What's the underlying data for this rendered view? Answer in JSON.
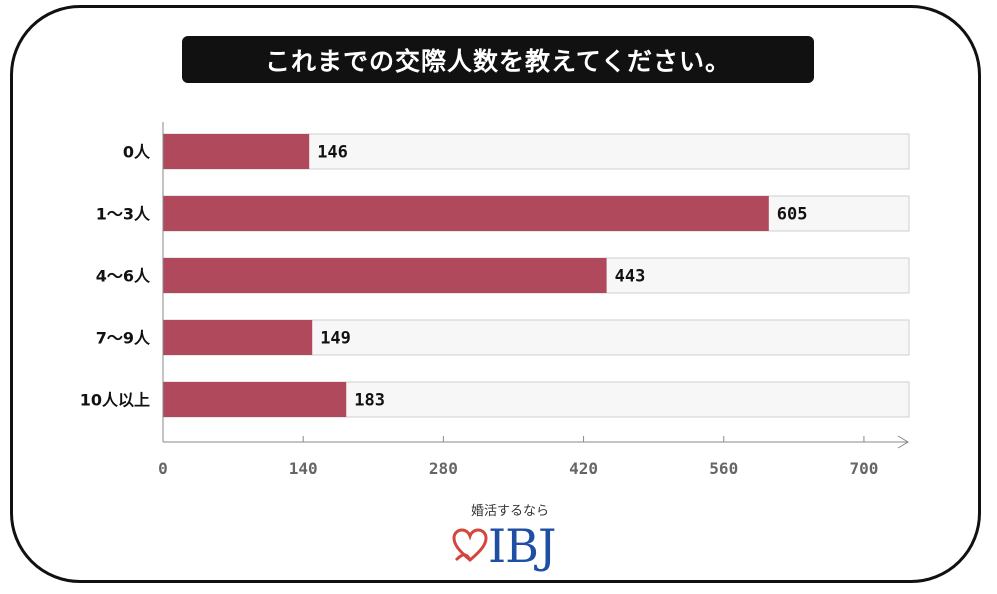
{
  "title": "これまでの交際人数を教えてください。",
  "chart_data": {
    "type": "bar",
    "orientation": "horizontal",
    "categories": [
      "0人",
      "1〜3人",
      "4〜6人",
      "7〜9人",
      "10人以上"
    ],
    "values": [
      146,
      605,
      443,
      149,
      183
    ],
    "xlim": [
      0,
      745
    ],
    "xticks": [
      0,
      140,
      280,
      420,
      560,
      700
    ],
    "bar_color": "#b0495c",
    "track_color": "#f7f7f7"
  },
  "logo": {
    "tagline": "婚活するなら",
    "text": "IBJ",
    "heart_color": "#d6453c",
    "text_color": "#1f4fa3"
  }
}
